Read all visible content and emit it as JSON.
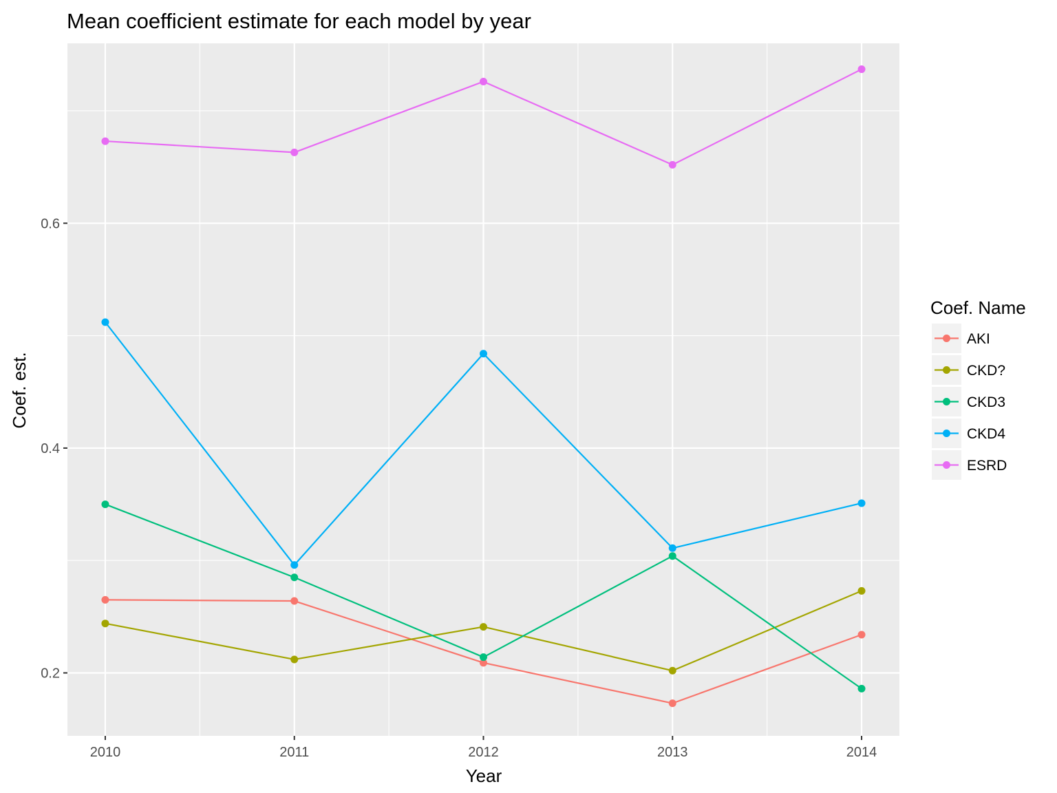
{
  "chart_data": {
    "type": "line",
    "title": "Mean coefficient estimate for each model by year",
    "xlabel": "Year",
    "ylabel": "Coef. est.",
    "categories": [
      "2010",
      "2011",
      "2012",
      "2013",
      "2014"
    ],
    "x": [
      2010,
      2011,
      2012,
      2013,
      2014
    ],
    "xlim": [
      2009.8,
      2014.2
    ],
    "ylim": [
      0.144,
      0.76
    ],
    "yticks": [
      0.2,
      0.4,
      0.6
    ],
    "ytick_labels": [
      "0.2",
      "0.4",
      "0.6"
    ],
    "grid": true,
    "legend": {
      "title": "Coef. Name",
      "position": "right"
    },
    "series": [
      {
        "name": "AKI",
        "color": "#F8766D",
        "values": [
          0.265,
          0.264,
          0.209,
          0.173,
          0.234
        ]
      },
      {
        "name": "CKD?",
        "color": "#A3A500",
        "values": [
          0.244,
          0.212,
          0.241,
          0.202,
          0.273
        ]
      },
      {
        "name": "CKD3",
        "color": "#00BF7D",
        "values": [
          0.35,
          0.285,
          0.214,
          0.304,
          0.186
        ]
      },
      {
        "name": "CKD4",
        "color": "#00B0F6",
        "values": [
          0.512,
          0.296,
          0.484,
          0.311,
          0.351
        ]
      },
      {
        "name": "ESRD",
        "color": "#E76BF3",
        "values": [
          0.673,
          0.663,
          0.726,
          0.652,
          0.737
        ]
      }
    ]
  }
}
